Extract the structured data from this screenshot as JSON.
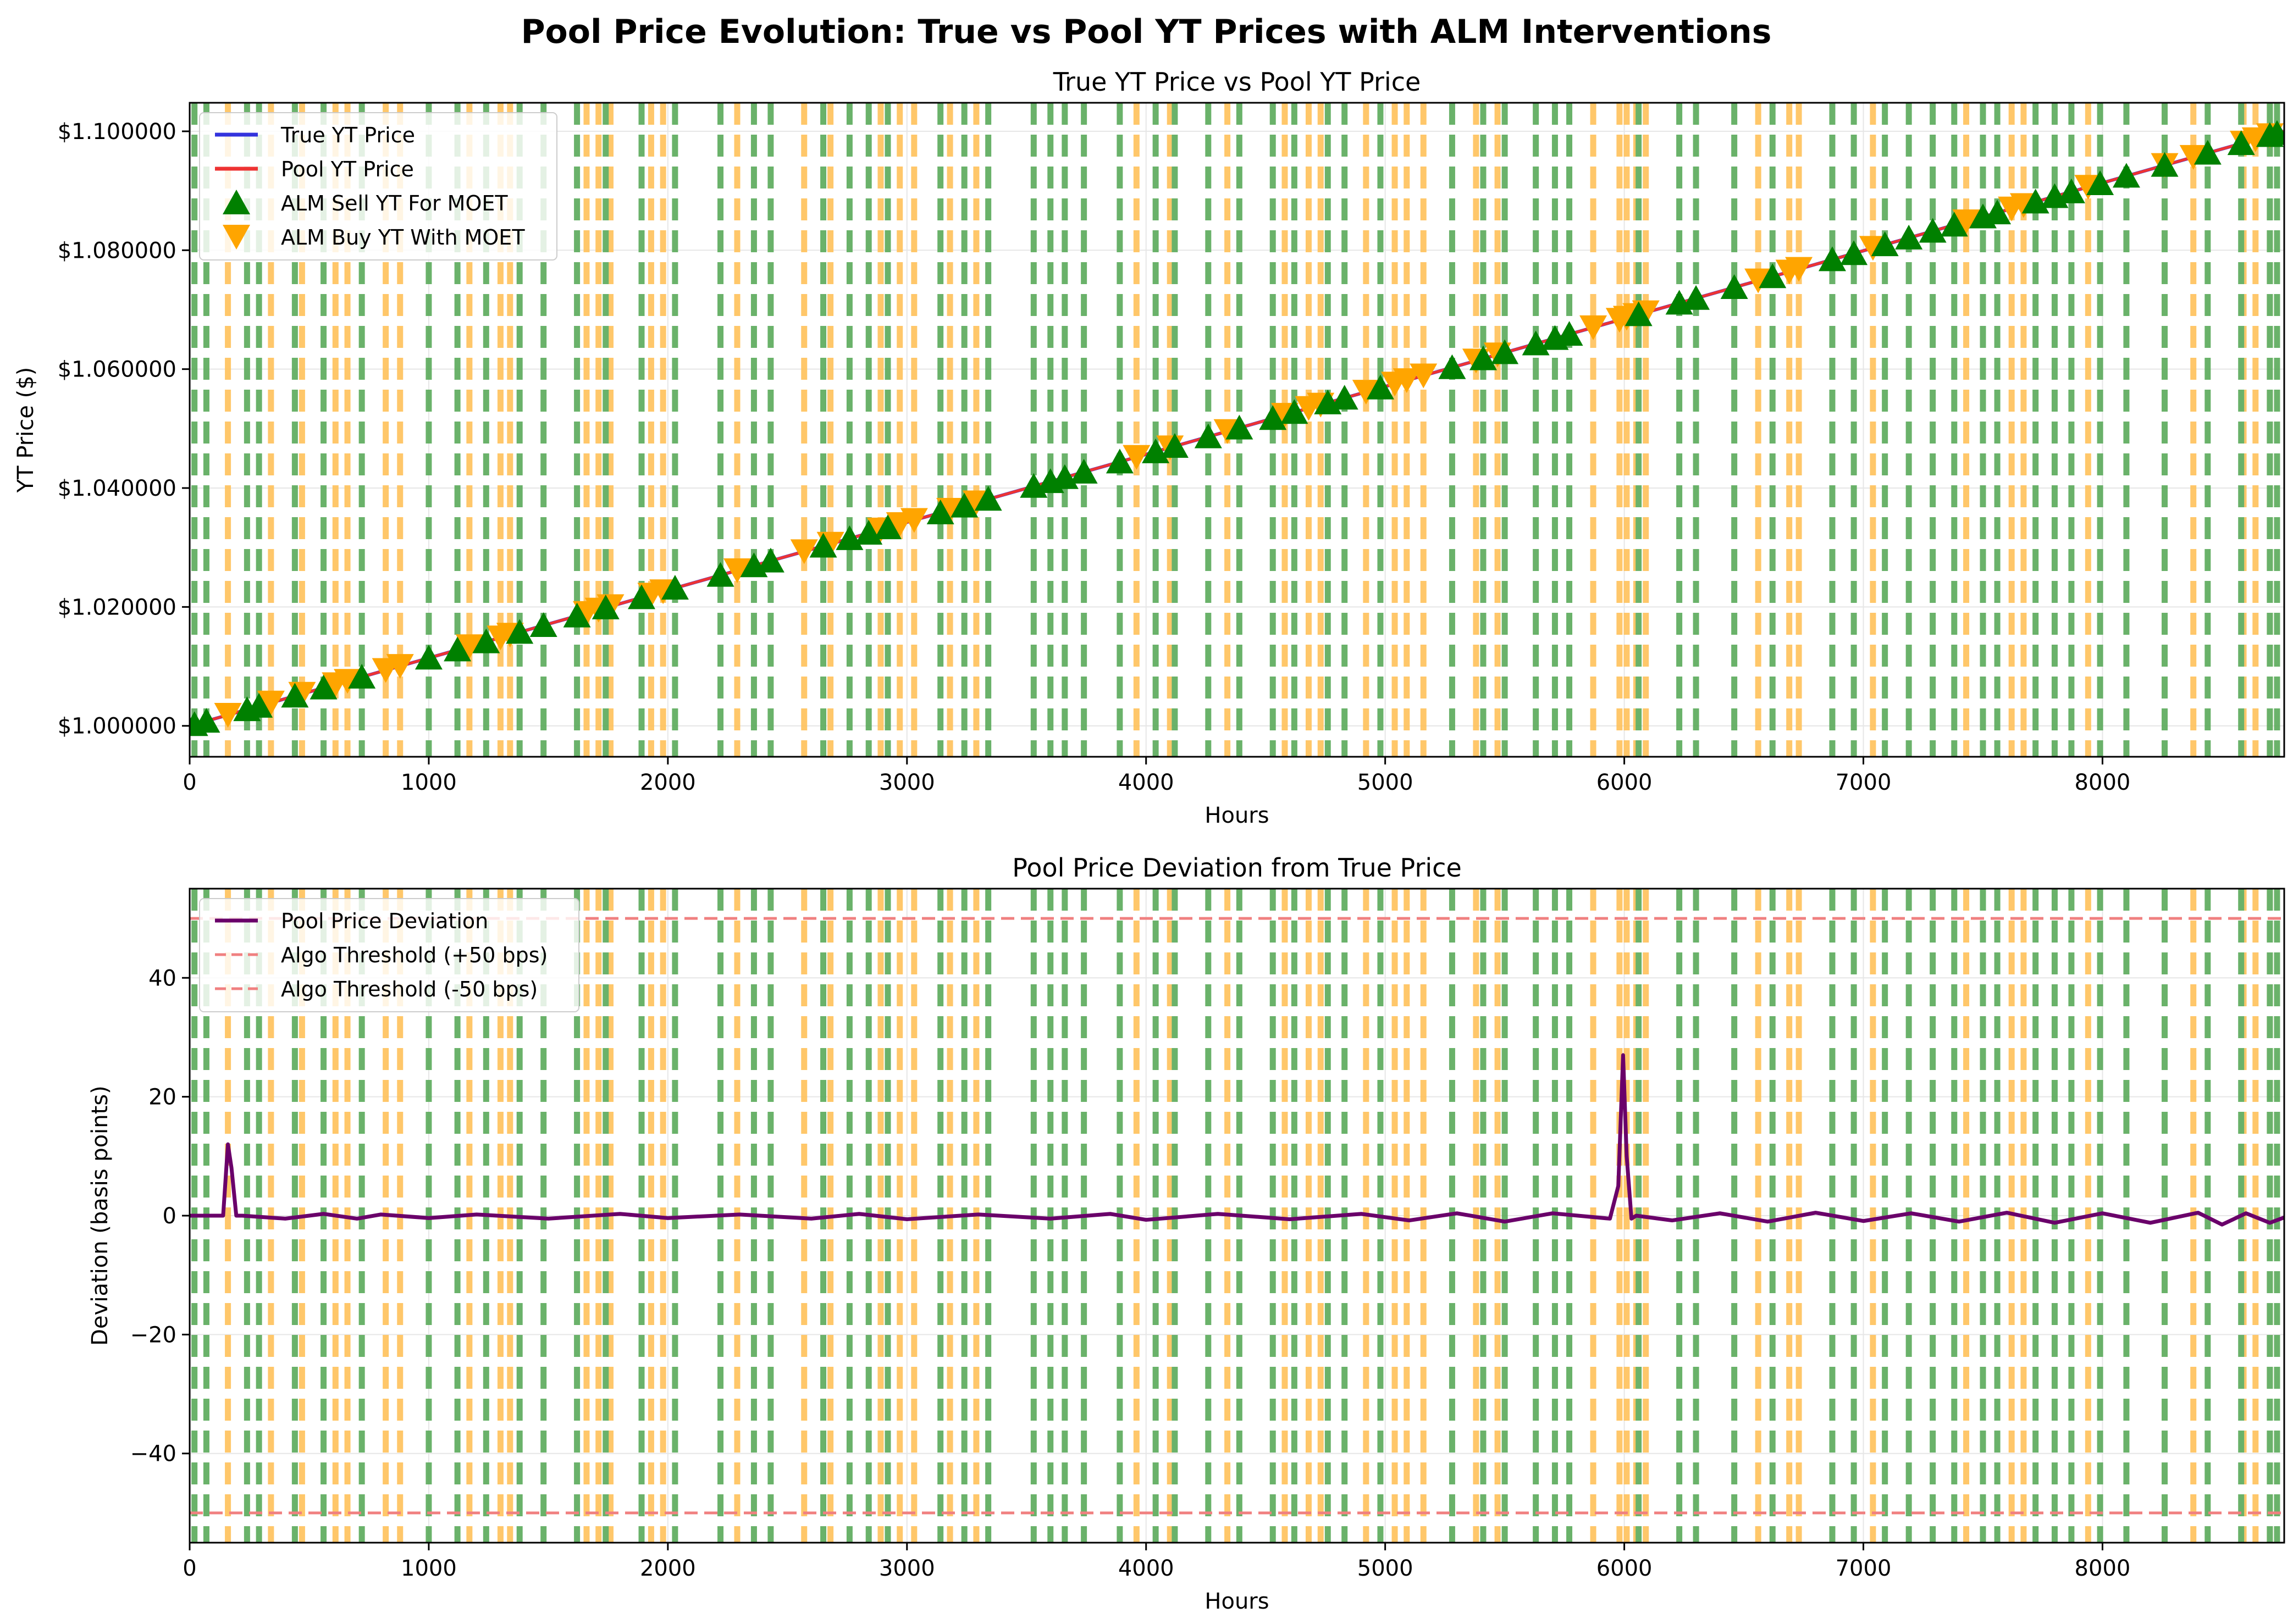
{
  "figure": {
    "suptitle": "Pool Price Evolution: True vs Pool YT Prices with ALM Interventions"
  },
  "colors": {
    "true_price": "#3333dd",
    "pool_price": "#ee3333",
    "sell_marker": "#008000",
    "buy_marker": "#ffa500",
    "deviation": "#6a006a",
    "threshold": "#f08080",
    "sell_band": "#5aaa5a",
    "buy_band": "#ffc25a"
  },
  "chart_data": [
    {
      "type": "line",
      "title": "True YT Price vs Pool YT Price",
      "xlabel": "Hours",
      "ylabel": "YT Price ($)",
      "xlim": [
        0,
        8760
      ],
      "ylim": [
        0.9948,
        1.1048
      ],
      "x_ticks": [
        0,
        1000,
        2000,
        3000,
        4000,
        5000,
        6000,
        7000,
        8000
      ],
      "x_tick_labels": [
        "0",
        "1000",
        "2000",
        "3000",
        "4000",
        "5000",
        "6000",
        "7000",
        "8000"
      ],
      "y_ticks": [
        1.0,
        1.02,
        1.04,
        1.06,
        1.08,
        1.1
      ],
      "y_tick_labels": [
        "$1.000000",
        "$1.020000",
        "$1.040000",
        "$1.060000",
        "$1.080000",
        "$1.100000"
      ],
      "grid": true,
      "legend": "top-left",
      "series": [
        {
          "name": "True YT Price",
          "kind": "line",
          "x": [
            0,
            8760
          ],
          "y": [
            1.0,
            1.1
          ]
        },
        {
          "name": "Pool YT Price",
          "kind": "line",
          "x": [
            0,
            8760
          ],
          "y": [
            1.0,
            1.1
          ]
        }
      ],
      "interventions": [
        {
          "name": "ALM Sell YT For MOET",
          "marker": "triangle-up",
          "x": [
            20,
            70,
            240,
            290,
            440,
            560,
            720,
            1000,
            1120,
            1240,
            1380,
            1480,
            1620,
            1740,
            1890,
            2030,
            2220,
            2360,
            2430,
            2650,
            2760,
            2840,
            2920,
            3140,
            3240,
            3340,
            3530,
            3600,
            3660,
            3740,
            3890,
            4040,
            4120,
            4260,
            4390,
            4530,
            4620,
            4760,
            4830,
            4980,
            5280,
            5410,
            5500,
            5630,
            5710,
            5770,
            6060,
            6230,
            6300,
            6460,
            6620,
            6870,
            6960,
            7090,
            7190,
            7290,
            7380,
            7500,
            7560,
            7720,
            7800,
            7870,
            7990,
            8100,
            8260,
            8440,
            8580,
            8700,
            8730
          ]
        },
        {
          "name": "ALM Buy YT With MOET",
          "marker": "triangle-down",
          "x": [
            160,
            340,
            470,
            610,
            660,
            820,
            880,
            1170,
            1300,
            1340,
            1660,
            1710,
            1760,
            1930,
            1980,
            2290,
            2570,
            2680,
            2890,
            2970,
            3030,
            3180,
            3290,
            3960,
            4100,
            4340,
            4580,
            4680,
            4730,
            4920,
            5040,
            5090,
            5160,
            5380,
            5470,
            5870,
            5980,
            6010,
            6050,
            6090,
            6560,
            6690,
            6730,
            7040,
            7430,
            7620,
            7670,
            7940,
            8260,
            8380,
            8590,
            8640,
            8700
          ]
        }
      ]
    },
    {
      "type": "line",
      "title": "Pool Price Deviation from True Price",
      "xlabel": "Hours",
      "ylabel": "Deviation (basis points)",
      "xlim": [
        0,
        8760
      ],
      "ylim": [
        -55,
        55
      ],
      "x_ticks": [
        0,
        1000,
        2000,
        3000,
        4000,
        5000,
        6000,
        7000,
        8000
      ],
      "x_tick_labels": [
        "0",
        "1000",
        "2000",
        "3000",
        "4000",
        "5000",
        "6000",
        "7000",
        "8000"
      ],
      "y_ticks": [
        -40,
        -20,
        0,
        20,
        40
      ],
      "y_tick_labels": [
        "−40",
        "−20",
        "0",
        "20",
        "40"
      ],
      "grid": true,
      "legend": "top-left",
      "series": [
        {
          "name": "Pool Price Deviation",
          "kind": "line",
          "x": [
            0,
            140,
            160,
            175,
            195,
            220,
            400,
            560,
            700,
            800,
            1000,
            1200,
            1500,
            1800,
            2000,
            2300,
            2600,
            2800,
            3000,
            3300,
            3600,
            3850,
            4000,
            4300,
            4600,
            4900,
            5100,
            5300,
            5500,
            5700,
            5940,
            5975,
            5995,
            6010,
            6030,
            6050,
            6200,
            6400,
            6600,
            6800,
            7000,
            7200,
            7400,
            7600,
            7800,
            8000,
            8200,
            8400,
            8500,
            8600,
            8700,
            8760
          ],
          "y": [
            0,
            0,
            12,
            8,
            0,
            0,
            -0.5,
            0.3,
            -0.5,
            0.2,
            -0.4,
            0.2,
            -0.5,
            0.3,
            -0.4,
            0.2,
            -0.5,
            0.3,
            -0.6,
            0.2,
            -0.5,
            0.3,
            -0.7,
            0.3,
            -0.6,
            0.3,
            -0.8,
            0.4,
            -1.0,
            0.4,
            -0.5,
            5,
            27,
            10,
            -0.5,
            0,
            -0.8,
            0.4,
            -1.0,
            0.5,
            -0.9,
            0.4,
            -1.0,
            0.5,
            -1.2,
            0.4,
            -1.2,
            0.5,
            -1.5,
            0.4,
            -1.2,
            -0.3
          ]
        },
        {
          "name": "Algo Threshold (+50 bps)",
          "kind": "hline",
          "y": 50
        },
        {
          "name": "Algo Threshold (-50 bps)",
          "kind": "hline",
          "y": -50
        }
      ]
    }
  ]
}
